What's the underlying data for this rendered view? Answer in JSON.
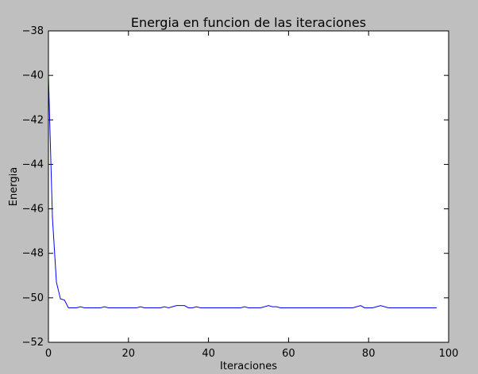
{
  "colors": {
    "figure_background": "#bfbfbf",
    "plot_background": "#ffffff",
    "axes": "#000000",
    "series_line": "#0000ff"
  },
  "chart_data": {
    "type": "line",
    "title": "Energia en funcion de las iteraciones",
    "xlabel": "Iteraciones",
    "ylabel": "Energia",
    "xlim": [
      0,
      100
    ],
    "ylim": [
      -52,
      -38
    ],
    "grid": false,
    "legend": "none",
    "x_ticks": [
      0,
      20,
      40,
      60,
      80,
      100
    ],
    "y_ticks": [
      -52,
      -50,
      -48,
      -46,
      -44,
      -42,
      -40,
      -38
    ],
    "x_tick_labels": [
      "0",
      "20",
      "40",
      "60",
      "80",
      "100"
    ],
    "y_tick_labels": [
      "−52",
      "−50",
      "−48",
      "−46",
      "−44",
      "−42",
      "−40",
      "−38"
    ],
    "series": [
      {
        "color": "#0000ff",
        "x": [
          0,
          1,
          2,
          3,
          4,
          5,
          6,
          7,
          8,
          9,
          10,
          11,
          12,
          13,
          14,
          15,
          16,
          17,
          18,
          19,
          20,
          21,
          22,
          23,
          24,
          25,
          26,
          27,
          28,
          29,
          30,
          31,
          32,
          33,
          34,
          35,
          36,
          37,
          38,
          39,
          40,
          41,
          42,
          43,
          44,
          45,
          46,
          47,
          48,
          49,
          50,
          51,
          52,
          53,
          54,
          55,
          56,
          57,
          58,
          59,
          60,
          61,
          62,
          63,
          64,
          65,
          66,
          67,
          68,
          69,
          70,
          71,
          72,
          73,
          74,
          75,
          76,
          77,
          78,
          79,
          80,
          81,
          82,
          83,
          84,
          85,
          86,
          87,
          88,
          89,
          90,
          91,
          92,
          93,
          94,
          95,
          96,
          97
        ],
        "y": [
          -40,
          -46.4,
          -49.3,
          -50.05,
          -50.1,
          -50.45,
          -50.45,
          -50.45,
          -50.4,
          -50.45,
          -50.45,
          -50.45,
          -50.45,
          -50.45,
          -50.4,
          -50.45,
          -50.45,
          -50.45,
          -50.45,
          -50.45,
          -50.45,
          -50.45,
          -50.45,
          -50.4,
          -50.45,
          -50.45,
          -50.45,
          -50.45,
          -50.45,
          -50.4,
          -50.45,
          -50.4,
          -50.35,
          -50.35,
          -50.35,
          -50.45,
          -50.45,
          -50.4,
          -50.45,
          -50.45,
          -50.45,
          -50.45,
          -50.45,
          -50.45,
          -50.45,
          -50.45,
          -50.45,
          -50.45,
          -50.45,
          -50.4,
          -50.45,
          -50.45,
          -50.45,
          -50.45,
          -50.4,
          -50.35,
          -50.4,
          -50.4,
          -50.45,
          -50.45,
          -50.45,
          -50.45,
          -50.45,
          -50.45,
          -50.45,
          -50.45,
          -50.45,
          -50.45,
          -50.45,
          -50.45,
          -50.45,
          -50.45,
          -50.45,
          -50.45,
          -50.45,
          -50.45,
          -50.45,
          -50.4,
          -50.35,
          -50.45,
          -50.45,
          -50.45,
          -50.4,
          -50.35,
          -50.4,
          -50.45,
          -50.45,
          -50.45,
          -50.45,
          -50.45,
          -50.45,
          -50.45,
          -50.45,
          -50.45,
          -50.45,
          -50.45,
          -50.45,
          -50.45
        ]
      }
    ]
  }
}
